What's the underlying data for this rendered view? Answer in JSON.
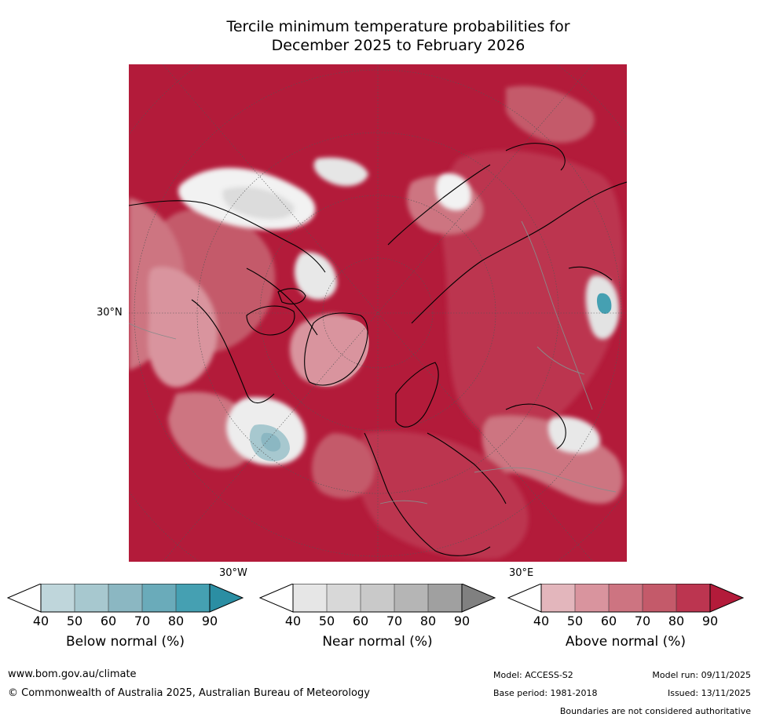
{
  "title": {
    "line1": "Tercile minimum temperature probabilities for",
    "line2": "December 2025 to February 2026"
  },
  "map": {
    "lat_label": "30°N",
    "lon_labels": [
      "30°W",
      "30°E"
    ]
  },
  "colorbars": [
    {
      "label": "Below normal (%)",
      "ticks": [
        "40",
        "50",
        "60",
        "70",
        "80",
        "90"
      ],
      "colors": [
        "#bfd6db",
        "#a7c8cf",
        "#8bb7c2",
        "#6aabba",
        "#45a0b2",
        "#2b8ea3"
      ]
    },
    {
      "label": "Near normal (%)",
      "ticks": [
        "40",
        "50",
        "60",
        "70",
        "80",
        "90"
      ],
      "colors": [
        "#e6e6e6",
        "#d8d8d8",
        "#c9c9c9",
        "#b5b5b5",
        "#a0a0a0",
        "#808080"
      ]
    },
    {
      "label": "Above normal (%)",
      "ticks": [
        "40",
        "50",
        "60",
        "70",
        "80",
        "90"
      ],
      "colors": [
        "#e3b6bc",
        "#d9949e",
        "#cd7481",
        "#c45a6a",
        "#bc3550",
        "#b31b3a"
      ]
    }
  ],
  "footer": {
    "website": "www.bom.gov.au/climate",
    "copyright": "© Commonwealth of Australia 2025, Australian Bureau of Meteorology",
    "model": "Model: ACCESS-S2",
    "base_period": "Base period: 1981-2018",
    "model_run": "Model run: 09/11/2025",
    "issued": "Issued: 13/11/2025",
    "disclaimer": "Boundaries are not considered authoritative"
  }
}
